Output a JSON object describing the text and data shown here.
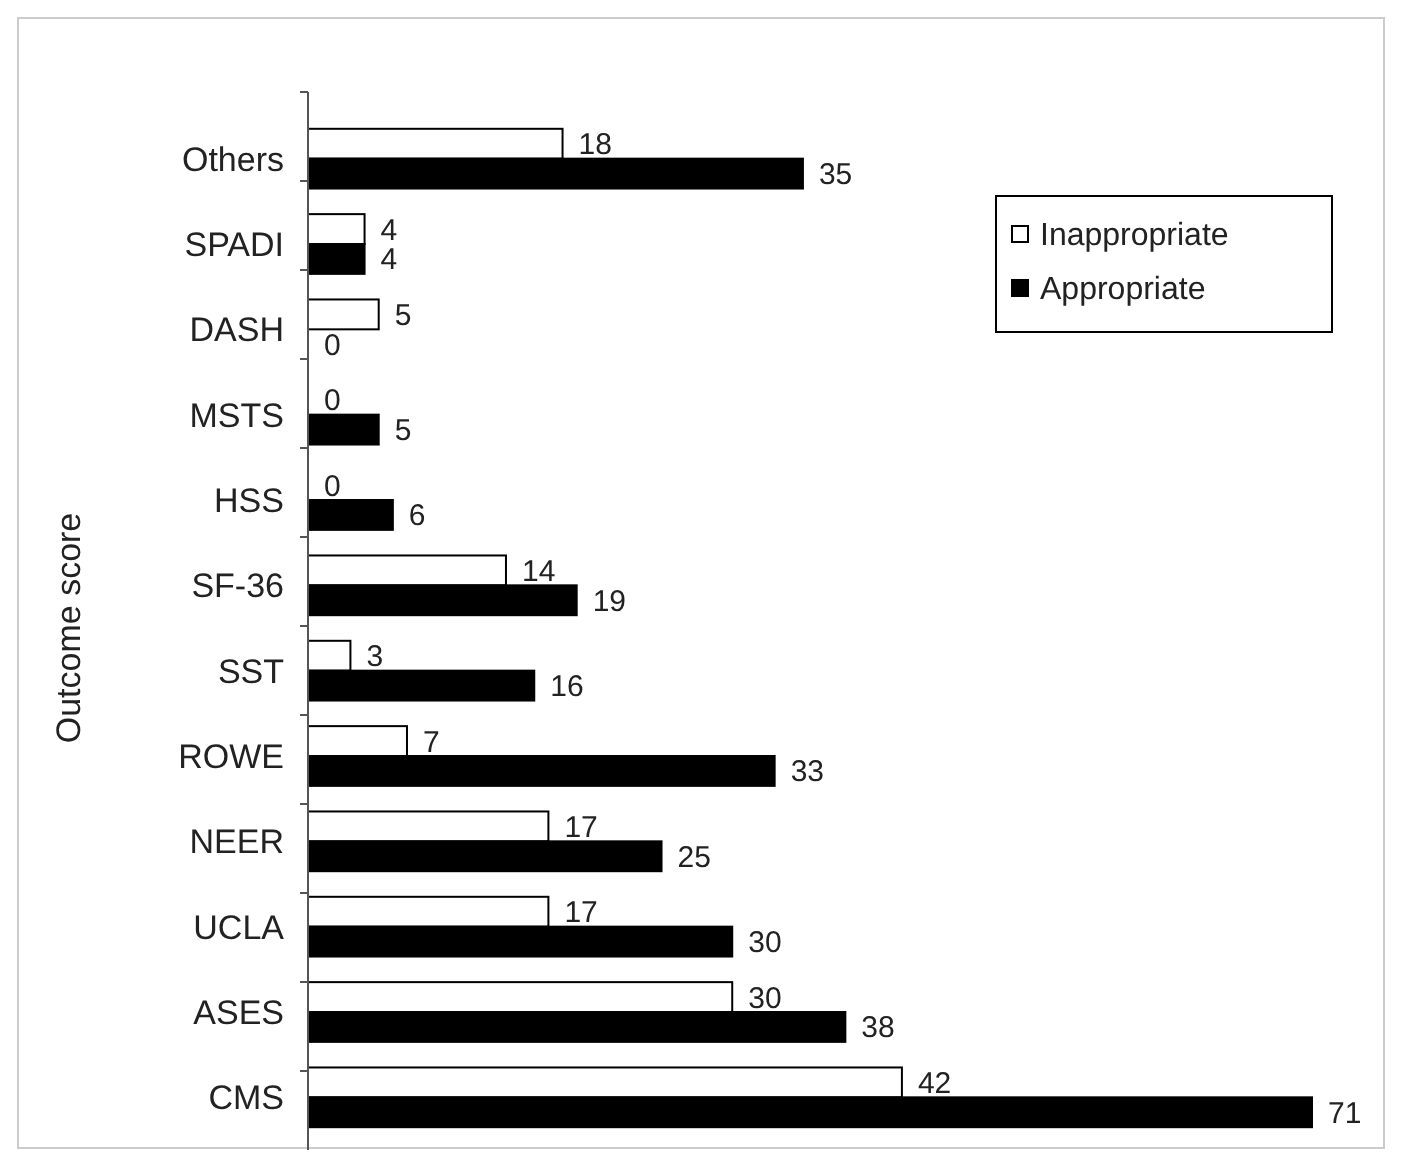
{
  "chart_data": {
    "type": "bar",
    "orientation": "horizontal",
    "ylabel": "Outcome score",
    "categories": [
      "Others",
      "SPADI",
      "DASH",
      "MSTS",
      "HSS",
      "SF-36",
      "SST",
      "ROWE",
      "NEER",
      "UCLA",
      "ASES",
      "CMS"
    ],
    "series": [
      {
        "name": "Inappropriate",
        "color": "#ffffff",
        "values": [
          18,
          4,
          5,
          0,
          0,
          14,
          3,
          7,
          17,
          17,
          30,
          42
        ]
      },
      {
        "name": "Appropriate",
        "color": "#000000",
        "values": [
          35,
          4,
          0,
          5,
          6,
          19,
          16,
          33,
          25,
          30,
          38,
          71
        ]
      }
    ],
    "data_labels": true,
    "legend": "top right",
    "grid": false
  }
}
